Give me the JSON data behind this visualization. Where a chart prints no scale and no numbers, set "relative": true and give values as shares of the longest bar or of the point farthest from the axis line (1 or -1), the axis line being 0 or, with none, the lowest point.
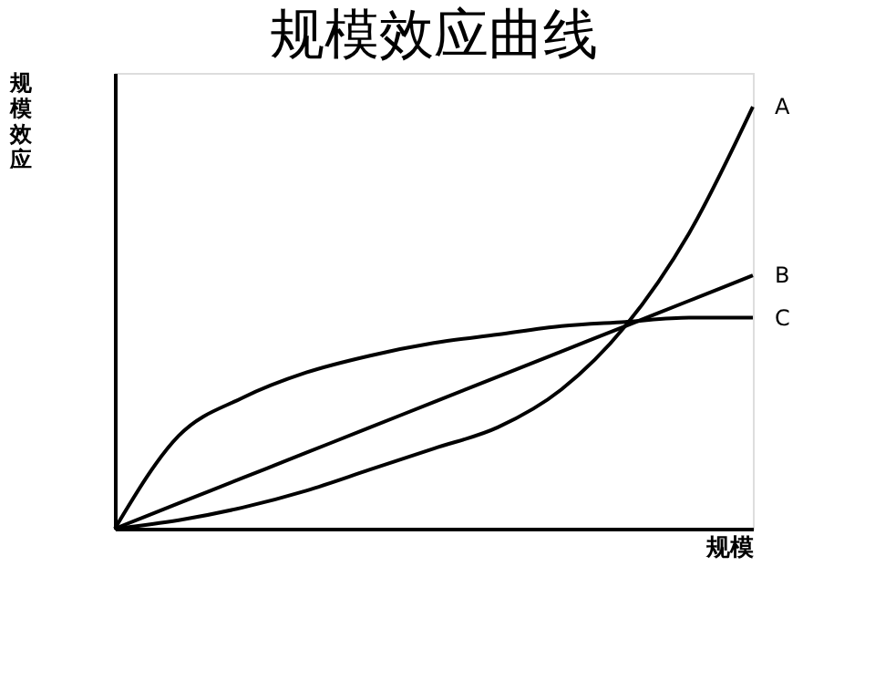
{
  "chart_data": {
    "type": "line",
    "title": "规模效应曲线",
    "xlabel": "规模",
    "ylabel": "规模效应",
    "relative": true,
    "categories": [
      null,
      null,
      null,
      null,
      null,
      null,
      null,
      null,
      null,
      null,
      null
    ],
    "grid": false,
    "legend": false,
    "marker": "none",
    "line_style": "solid",
    "series": [
      {
        "name": "A",
        "color": "#000000",
        "values": [
          0,
          0.02,
          0.05,
          0.09,
          0.14,
          0.19,
          0.24,
          0.33,
          0.48,
          0.7,
          1.0
        ]
      },
      {
        "name": "B",
        "color": "#000000",
        "values": [
          0,
          0.06,
          0.12,
          0.18,
          0.24,
          0.3,
          0.36,
          0.42,
          0.48,
          0.54,
          0.6
        ]
      },
      {
        "name": "C",
        "color": "#000000",
        "values": [
          0,
          0.22,
          0.31,
          0.37,
          0.41,
          0.44,
          0.46,
          0.48,
          0.49,
          0.5,
          0.5
        ]
      }
    ]
  }
}
